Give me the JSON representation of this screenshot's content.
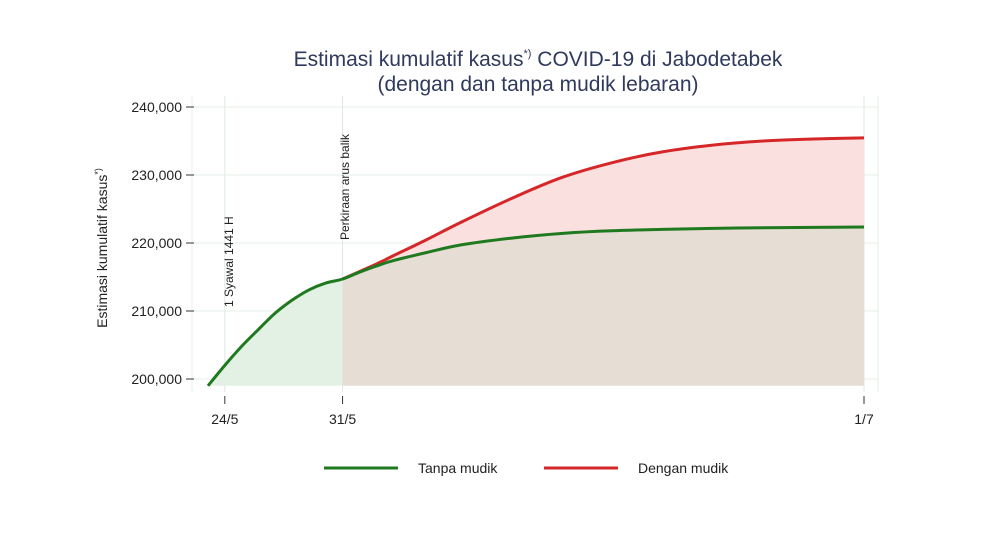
{
  "chart_data": {
    "type": "area",
    "title_line1": "Estimasi kumulatif kasus",
    "title_sup": "*)",
    "title_line1_rest": " COVID-19 di Jabodetabek",
    "title_line2": "(dengan dan tanpa mudik lebaran)",
    "ylabel": "Estimasi kumulatif kasus",
    "ylabel_sup": "*)",
    "xlabel": "",
    "ylim": [
      199000,
      241000
    ],
    "y_ticks": [
      200000,
      210000,
      220000,
      230000,
      240000
    ],
    "y_tick_labels": [
      "200,000",
      "210,000",
      "220,000",
      "230,000",
      "240,000"
    ],
    "x_ticks": [
      "2020-05-24",
      "2020-05-31",
      "2020-07-01"
    ],
    "x_tick_labels": [
      "24/5",
      "31/5",
      "1/7"
    ],
    "xlim": [
      "2020-05-23",
      "2020-07-01"
    ],
    "grid": true,
    "legend_position": "bottom",
    "annotations": [
      {
        "x": "2020-05-24",
        "text": "1 Syawal 1441 H"
      },
      {
        "x": "2020-05-31",
        "text": "Perkiraan arus balik"
      }
    ],
    "series": [
      {
        "name": "Tanpa mudik",
        "color": "#1f7a1f",
        "x": [
          "2020-05-23",
          "2020-05-24",
          "2020-05-25",
          "2020-05-26",
          "2020-05-27",
          "2020-05-28",
          "2020-05-29",
          "2020-05-30",
          "2020-05-31",
          "2020-06-01",
          "2020-06-02",
          "2020-06-03",
          "2020-06-05",
          "2020-06-07",
          "2020-06-10",
          "2020-06-13",
          "2020-06-16",
          "2020-06-19",
          "2020-06-22",
          "2020-06-25",
          "2020-06-28",
          "2020-07-01"
        ],
        "values": [
          199000,
          202000,
          204800,
          207300,
          209700,
          211600,
          213100,
          214100,
          214700,
          215700,
          216600,
          217400,
          218600,
          219700,
          220700,
          221400,
          221800,
          222000,
          222150,
          222250,
          222300,
          222350
        ]
      },
      {
        "name": "Dengan mudik",
        "color": "#d62728",
        "x": [
          "2020-05-31",
          "2020-06-01",
          "2020-06-02",
          "2020-06-03",
          "2020-06-05",
          "2020-06-07",
          "2020-06-10",
          "2020-06-13",
          "2020-06-16",
          "2020-06-19",
          "2020-06-22",
          "2020-06-25",
          "2020-06-28",
          "2020-07-01"
        ],
        "values": [
          214700,
          215800,
          216900,
          218100,
          220500,
          223000,
          226500,
          229600,
          231800,
          233400,
          234400,
          235000,
          235300,
          235450
        ]
      }
    ]
  }
}
